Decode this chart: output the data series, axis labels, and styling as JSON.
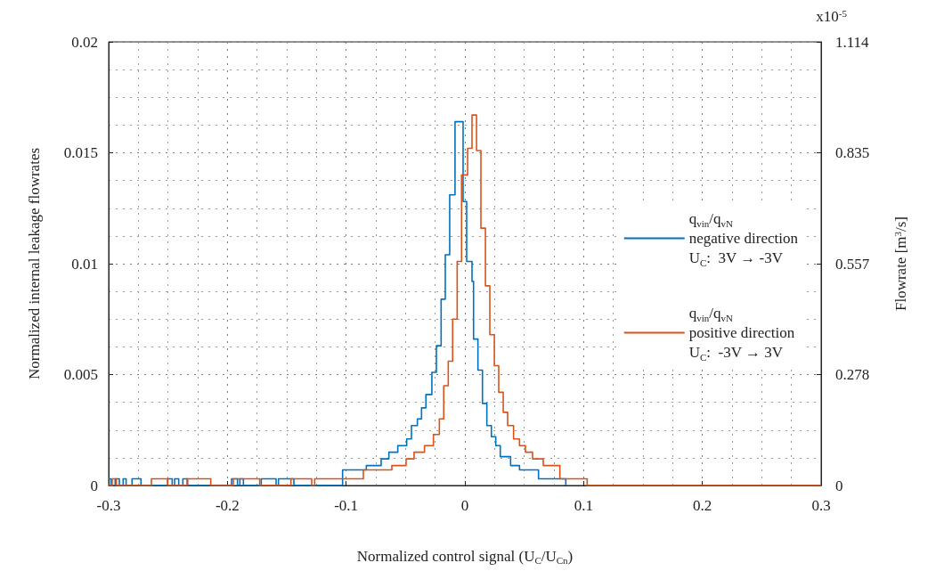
{
  "chart_data": {
    "type": "step",
    "xlabel": "Normalized control signal (U$_{C}$/U$_{Cn}$)",
    "ylabel": "Normalized internal leakage flowrates",
    "y2label": "Flowrate [m$^{3}$/s]",
    "annotations": [
      "x10$^{-5}$"
    ],
    "xlim": [
      -0.3,
      0.3
    ],
    "xticks": [
      -0.3,
      -0.2,
      -0.1,
      0,
      0.1,
      0.2,
      0.3
    ],
    "ylim": [
      0,
      0.02
    ],
    "yticks": [
      0,
      0.005,
      0.01,
      0.015,
      0.02
    ],
    "y2lim": [
      0,
      1.114
    ],
    "y2ticks": [
      0,
      0.278,
      0.557,
      0.835,
      1.114
    ],
    "grid": true,
    "legend": "right",
    "line_style": "solid",
    "marker": "none",
    "series": [
      {
        "name": "q$_{vin}$/q$_{vN}$\nnegative direction\nU$_{C}$:  3V → -3V",
        "color": "#0072bd",
        "x": [
          -0.3,
          -0.298,
          -0.2945,
          -0.291,
          -0.2878,
          -0.2853,
          -0.2803,
          -0.2728,
          -0.2503,
          -0.2465,
          -0.2445,
          -0.241,
          -0.2375,
          -0.2335,
          -0.1965,
          -0.1915,
          -0.1895,
          -0.1865,
          -0.1715,
          -0.159,
          -0.157,
          -0.144,
          -0.103,
          -0.083,
          -0.0705,
          -0.064,
          -0.0565,
          -0.049,
          -0.045,
          -0.04,
          -0.0365,
          -0.0328,
          -0.0278,
          -0.024,
          -0.02,
          -0.0165,
          -0.0128,
          -0.0083,
          -0.0015,
          0.0015,
          0.006,
          0.0073,
          0.011,
          0.0148,
          0.0185,
          0.0223,
          0.026,
          0.0298,
          0.0385,
          0.046,
          0.062,
          0.085
        ],
        "values": [
          0.0003,
          0,
          0.0003,
          0,
          0.0003,
          0,
          0.0003,
          0,
          0.0003,
          0,
          0.0003,
          0,
          0.0003,
          0,
          0.0003,
          0,
          0.0003,
          0,
          0.0003,
          0,
          0.0003,
          0,
          0.0007,
          0.0009,
          0.0012,
          0.0015,
          0.0018,
          0.0021,
          0.0027,
          0.003,
          0.0035,
          0.0041,
          0.0051,
          0.0063,
          0.0084,
          0.0104,
          0.0131,
          0.0164,
          0.0128,
          0.0101,
          0.0092,
          0.0066,
          0.0052,
          0.0037,
          0.0027,
          0.0022,
          0.0018,
          0.0013,
          0.0009,
          0.0007,
          0.0003,
          0
        ]
      },
      {
        "name": "q$_{vin}$/q$_{vN}$\npositive direction\nU$_{C}$:  -3V → 3V",
        "color": "#d95319",
        "x": [
          -0.3,
          -0.297,
          -0.2935,
          -0.264,
          -0.2503,
          -0.234,
          -0.214,
          -0.195,
          -0.1728,
          -0.1465,
          -0.129,
          -0.1265,
          -0.0855,
          -0.0615,
          -0.0495,
          -0.0428,
          -0.034,
          -0.0265,
          -0.0215,
          -0.0178,
          -0.014,
          -0.0103,
          -0.0065,
          -0.0028,
          0.0023,
          0.006,
          0.0098,
          0.0135,
          0.0173,
          0.021,
          0.0248,
          0.0285,
          0.0323,
          0.036,
          0.041,
          0.046,
          0.051,
          0.057,
          0.066,
          0.08,
          0.103,
          0.3
        ],
        "values": [
          0,
          0.0003,
          0,
          0.0003,
          0,
          0.0003,
          0,
          0.0003,
          0,
          0.0003,
          0,
          0.0003,
          0.0007,
          0.0009,
          0.0012,
          0.0015,
          0.0018,
          0.0023,
          0.003,
          0.0045,
          0.0056,
          0.0075,
          0.0101,
          0.014,
          0.0152,
          0.0167,
          0.0151,
          0.0116,
          0.009,
          0.0068,
          0.0054,
          0.0042,
          0.0033,
          0.0027,
          0.0021,
          0.0018,
          0.0015,
          0.0012,
          0.0009,
          0.0003,
          0,
          0
        ]
      }
    ]
  }
}
